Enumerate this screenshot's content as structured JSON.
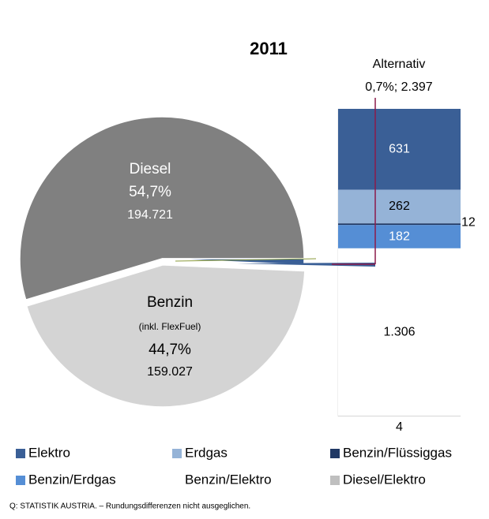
{
  "chart_data": {
    "type": "pie-of-bar",
    "title": "2011",
    "pie": {
      "categories": [
        "Diesel",
        "Benzin",
        "Alternativ"
      ],
      "values": [
        194721,
        159027,
        2397
      ],
      "value_labels": [
        "194.721",
        "159.027",
        "2.397"
      ],
      "percent": [
        54.7,
        44.7,
        0.7
      ],
      "percent_labels": [
        "54,7%",
        "44,7%",
        "0,7%"
      ],
      "colors": [
        "#808080",
        "#d4d4d4",
        "#3a5f96"
      ],
      "annotation": "(inkl. FlexFuel)"
    },
    "bar": {
      "categories": [
        "Elektro",
        "Erdgas",
        "Benzin/Flüssiggas",
        "Benzin/Erdgas",
        "Benzin/Elektro",
        "Diesel/Elektro"
      ],
      "values": [
        631,
        262,
        12,
        182,
        1306,
        4
      ],
      "value_labels": [
        "631",
        "262",
        "12",
        "182",
        "1.306",
        "4"
      ],
      "colors": [
        "#3a5f96",
        "#95b3d7",
        "#1f3864",
        "#558ed5",
        "#ffffff",
        "#bfbfbf"
      ]
    },
    "source": "Q: STATISTIK AUSTRIA. – Rundungsdifferenzen nicht ausgeglichen."
  }
}
